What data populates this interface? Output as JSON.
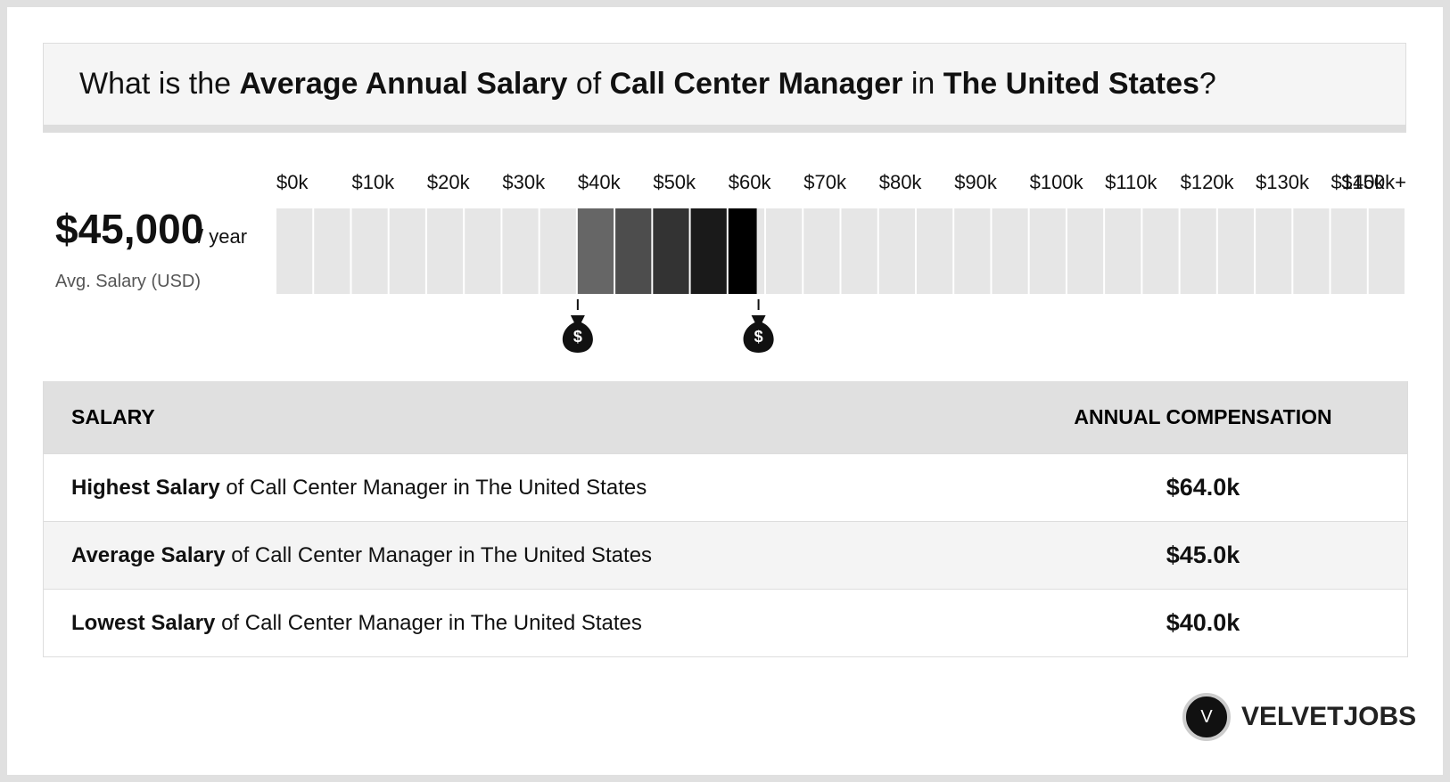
{
  "header": {
    "title_parts": [
      "What is the ",
      "Average Annual Salary",
      " of ",
      "Call Center Manager",
      " in ",
      "The United States",
      "?"
    ]
  },
  "summary": {
    "amount": "$45,000",
    "unit": "/ year",
    "caption": "Avg. Salary (USD)"
  },
  "scale": {
    "xlim": [
      0,
      150000
    ],
    "xticks": [
      {
        "value": 0,
        "label": "$0k"
      },
      {
        "value": 10000,
        "label": "$10k"
      },
      {
        "value": 20000,
        "label": "$20k"
      },
      {
        "value": 30000,
        "label": "$30k"
      },
      {
        "value": 40000,
        "label": "$40k"
      },
      {
        "value": 50000,
        "label": "$50k"
      },
      {
        "value": 60000,
        "label": "$60k"
      },
      {
        "value": 70000,
        "label": "$70k"
      },
      {
        "value": 80000,
        "label": "$80k"
      },
      {
        "value": 90000,
        "label": "$90k"
      },
      {
        "value": 100000,
        "label": "$100k"
      },
      {
        "value": 110000,
        "label": "$110k"
      },
      {
        "value": 120000,
        "label": "$120k"
      },
      {
        "value": 130000,
        "label": "$130k"
      },
      {
        "value": 140000,
        "label": "$140k"
      },
      {
        "value": 150000,
        "label": "$150k+"
      }
    ],
    "low": 40000,
    "high": 64000,
    "marker_symbol": "$"
  },
  "table": {
    "headers": [
      "SALARY",
      "ANNUAL COMPENSATION"
    ],
    "rows": [
      [
        "Highest Salary",
        " of Call Center Manager in The United States",
        "$64.0k"
      ],
      [
        "Average Salary",
        " of Call Center Manager in The United States",
        "$45.0k"
      ],
      [
        "Lowest Salary",
        " of Call Center Manager in The United States",
        "$40.0k"
      ]
    ]
  },
  "brand": {
    "logo": "V",
    "name": "VELVETJOBS"
  }
}
